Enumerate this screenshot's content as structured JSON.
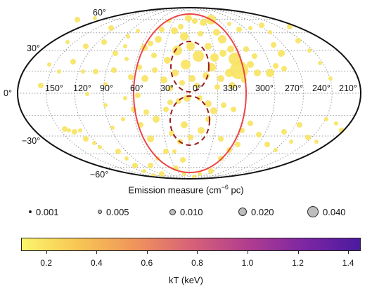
{
  "map": {
    "longitude_labels": [
      "150°",
      "120°",
      "90°",
      "60°",
      "30°",
      "0°",
      "330°",
      "300°",
      "270°",
      "240°",
      "210°"
    ],
    "latitude_labels": [
      "60°",
      "30°",
      "0°",
      "−30°",
      "−60°"
    ]
  },
  "legend": {
    "title": "Emission measure (cm",
    "title_sup": "−6",
    "title_end": " pc)",
    "sizes": [
      {
        "label": "0.001",
        "value": 0.001
      },
      {
        "label": "0.005",
        "value": 0.005
      },
      {
        "label": "0.010",
        "value": 0.01
      },
      {
        "label": "0.020",
        "value": 0.02
      },
      {
        "label": "0.040",
        "value": 0.04
      }
    ]
  },
  "colorbar": {
    "title": "kT (keV)",
    "ticks": [
      "0.2",
      "0.4",
      "0.6",
      "0.8",
      "1.0",
      "1.2",
      "1.4"
    ],
    "range": [
      0.1,
      1.45
    ],
    "colors": [
      "#fbf56b",
      "#f7c654",
      "#f0955b",
      "#d76277",
      "#b13e8f",
      "#7e26a3",
      "#4b1aa0"
    ]
  },
  "colors": {
    "point": "#f7e463",
    "bubble_outline": "#ef4444",
    "lobe_outline": "#9b1c1c",
    "grid": "#9a9a9a",
    "frame": "#111111"
  }
}
